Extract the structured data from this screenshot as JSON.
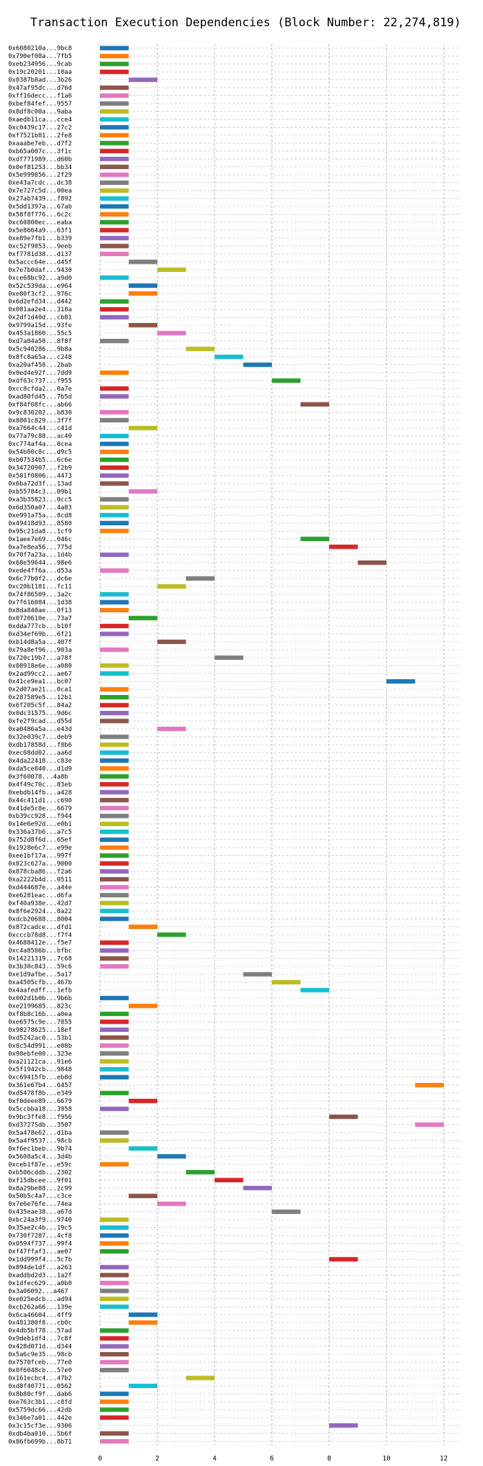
{
  "chart_data": {
    "type": "bar",
    "orientation": "horizontal",
    "title": "Transaction Execution Dependencies (Block Number: 22,274,819)",
    "xlabel": "",
    "ylabel": "",
    "xlim": [
      0,
      12.6
    ],
    "xticks": [
      0,
      2,
      4,
      6,
      8,
      10,
      12
    ],
    "grid": true,
    "palette": [
      "#1f77b4",
      "#ff7f0e",
      "#2ca02c",
      "#d62728",
      "#9467bd",
      "#8c564b",
      "#e377c2",
      "#7f7f7f",
      "#bcbd22",
      "#17becf"
    ],
    "transactions": [
      {
        "label": "0x6080210a...9bc8",
        "start": 0,
        "end": 1
      },
      {
        "label": "0x790ef08a...7fb5",
        "start": 0,
        "end": 1
      },
      {
        "label": "0xeb234956...9cab",
        "start": 0,
        "end": 1
      },
      {
        "label": "0x19c20201...10aa",
        "start": 0,
        "end": 1
      },
      {
        "label": "0x0387b8ad...3b26",
        "start": 1,
        "end": 2
      },
      {
        "label": "0x47af95dc...d76d",
        "start": 0,
        "end": 1
      },
      {
        "label": "0xff16decc...f1a6",
        "start": 0,
        "end": 1
      },
      {
        "label": "0xbef84fef...9557",
        "start": 0,
        "end": 1
      },
      {
        "label": "0x8df8c00a...9aba",
        "start": 0,
        "end": 1
      },
      {
        "label": "0xaedb11ca...cce4",
        "start": 0,
        "end": 1
      },
      {
        "label": "0xc0439c17...27c2",
        "start": 0,
        "end": 1
      },
      {
        "label": "0xf7521b81...2fe8",
        "start": 0,
        "end": 1
      },
      {
        "label": "0xaaabe7eb...d7f2",
        "start": 0,
        "end": 1
      },
      {
        "label": "0xb65a007c...3f1c",
        "start": 0,
        "end": 1
      },
      {
        "label": "0xdf771989...d60b",
        "start": 0,
        "end": 1
      },
      {
        "label": "0x0ef81253...bb34",
        "start": 0,
        "end": 1
      },
      {
        "label": "0x5e999856...2f29",
        "start": 0,
        "end": 1
      },
      {
        "label": "0xe43a7cdc...dc38",
        "start": 0,
        "end": 1
      },
      {
        "label": "0x7e727c5d...00ea",
        "start": 0,
        "end": 1
      },
      {
        "label": "0x27ab7439...f892",
        "start": 0,
        "end": 1
      },
      {
        "label": "0x5dd1397a...67ab",
        "start": 0,
        "end": 1
      },
      {
        "label": "0x58f8f776...6c2c",
        "start": 0,
        "end": 1
      },
      {
        "label": "0xc60800ec...eaba",
        "start": 0,
        "end": 1
      },
      {
        "label": "0x5e8664a9...63f1",
        "start": 0,
        "end": 1
      },
      {
        "label": "0xe89e7fb1...b339",
        "start": 0,
        "end": 1
      },
      {
        "label": "0xc52f9053...9eeb",
        "start": 0,
        "end": 1
      },
      {
        "label": "0xf7781d38...d137",
        "start": 0,
        "end": 1
      },
      {
        "label": "0x5accc64e...d45f",
        "start": 1,
        "end": 2
      },
      {
        "label": "0x7e7b0daf...9430",
        "start": 2,
        "end": 3
      },
      {
        "label": "0xce68bc92...a9d0",
        "start": 0,
        "end": 1
      },
      {
        "label": "0x52c539da...e964",
        "start": 1,
        "end": 2
      },
      {
        "label": "0xe80f3cf2...976c",
        "start": 1,
        "end": 2
      },
      {
        "label": "0x6d2efd34...d442",
        "start": 0,
        "end": 1
      },
      {
        "label": "0x081aa2e4...318a",
        "start": 0,
        "end": 1
      },
      {
        "label": "0x2df1d40d...cb81",
        "start": 0,
        "end": 1
      },
      {
        "label": "0x9799a15d...93fe",
        "start": 1,
        "end": 2
      },
      {
        "label": "0x453a1860...55c5",
        "start": 2,
        "end": 3
      },
      {
        "label": "0xd7a04a50...8f8f",
        "start": 0,
        "end": 1
      },
      {
        "label": "0x5c940286...9b8a",
        "start": 3,
        "end": 4
      },
      {
        "label": "0x8fc8a65a...c248",
        "start": 4,
        "end": 5
      },
      {
        "label": "0xa20af458...2bab",
        "start": 5,
        "end": 6
      },
      {
        "label": "0x0ed4e92f...7dd9",
        "start": 0,
        "end": 1
      },
      {
        "label": "0xdf63c737...f955",
        "start": 6,
        "end": 7
      },
      {
        "label": "0xcc8cfda2...0a7e",
        "start": 0,
        "end": 1
      },
      {
        "label": "0xad80fd45...7b5d",
        "start": 0,
        "end": 1
      },
      {
        "label": "0xf84f08fc...ab66",
        "start": 7,
        "end": 8
      },
      {
        "label": "0x9c830202...b830",
        "start": 0,
        "end": 1
      },
      {
        "label": "0x8801c829...3f7f",
        "start": 0,
        "end": 1
      },
      {
        "label": "0xa7664c44...c41d",
        "start": 1,
        "end": 2
      },
      {
        "label": "0x77a79c88...ac40",
        "start": 0,
        "end": 1
      },
      {
        "label": "0xc774af4a...0cea",
        "start": 0,
        "end": 1
      },
      {
        "label": "0x54b80c8c...d9c5",
        "start": 0,
        "end": 1
      },
      {
        "label": "0xb07534b5...6c6e",
        "start": 0,
        "end": 1
      },
      {
        "label": "0x34720907...f2b9",
        "start": 0,
        "end": 1
      },
      {
        "label": "0x581f0806...4473",
        "start": 0,
        "end": 1
      },
      {
        "label": "0x6ba72d3f...13ad",
        "start": 0,
        "end": 1
      },
      {
        "label": "0xb55784c3...09b1",
        "start": 1,
        "end": 2
      },
      {
        "label": "0xa3b35823...0cc5",
        "start": 0,
        "end": 1
      },
      {
        "label": "0x6d350a07...4a83",
        "start": 0,
        "end": 1
      },
      {
        "label": "0xe991a75a...8cd8",
        "start": 0,
        "end": 1
      },
      {
        "label": "0x49418d93...8580",
        "start": 0,
        "end": 1
      },
      {
        "label": "0x95c21da8...1cf9",
        "start": 0,
        "end": 1
      },
      {
        "label": "0x1aee7e69...046c",
        "start": 7,
        "end": 8
      },
      {
        "label": "0xa7e8ea56...775d",
        "start": 8,
        "end": 9
      },
      {
        "label": "0x70f7a23a...1d4b",
        "start": 0,
        "end": 1
      },
      {
        "label": "0x68e59644...98e6",
        "start": 9,
        "end": 10
      },
      {
        "label": "0xede4ff6a...d53a",
        "start": 0,
        "end": 1
      },
      {
        "label": "0x6c77b0f2...dc6e",
        "start": 3,
        "end": 4
      },
      {
        "label": "0xc20b1181...fc11",
        "start": 2,
        "end": 3
      },
      {
        "label": "0x74f86509...3a2c",
        "start": 0,
        "end": 1
      },
      {
        "label": "0x7f616084...1d38",
        "start": 0,
        "end": 1
      },
      {
        "label": "0x8da840ae...0f13",
        "start": 0,
        "end": 1
      },
      {
        "label": "0x0720610e...73a7",
        "start": 1,
        "end": 2
      },
      {
        "label": "0xdda777cb...b10f",
        "start": 0,
        "end": 1
      },
      {
        "label": "0xd34ef69b...6f21",
        "start": 0,
        "end": 1
      },
      {
        "label": "0xb14d8a5a...407f",
        "start": 2,
        "end": 3
      },
      {
        "label": "0x79a8ef96...903a",
        "start": 0,
        "end": 1
      },
      {
        "label": "0x720c19b7...a78f",
        "start": 4,
        "end": 5
      },
      {
        "label": "0x08918e6e...a080",
        "start": 0,
        "end": 1
      },
      {
        "label": "0x2ad99cc2...ae67",
        "start": 0,
        "end": 1
      },
      {
        "label": "0x41ce9ea1...bc07",
        "start": 10,
        "end": 11
      },
      {
        "label": "0x2d07ae21...0ca1",
        "start": 0,
        "end": 1
      },
      {
        "label": "0x287589e5...12b1",
        "start": 0,
        "end": 1
      },
      {
        "label": "0x6f205c5f...84a2",
        "start": 0,
        "end": 1
      },
      {
        "label": "0x0dc31575...9d6c",
        "start": 0,
        "end": 1
      },
      {
        "label": "0xfe2f9cad...d55d",
        "start": 0,
        "end": 1
      },
      {
        "label": "0xa0486a5a...e43d",
        "start": 2,
        "end": 3
      },
      {
        "label": "0x32e039c7...deb9",
        "start": 0,
        "end": 1
      },
      {
        "label": "0xdb17858d...f8b6",
        "start": 0,
        "end": 1
      },
      {
        "label": "0xec08dd02...aa6d",
        "start": 0,
        "end": 1
      },
      {
        "label": "0x4da22418...c83e",
        "start": 0,
        "end": 1
      },
      {
        "label": "0xda5ce840...d1d9",
        "start": 0,
        "end": 1
      },
      {
        "label": "0x3f60078...4a8b",
        "start": 0,
        "end": 1
      },
      {
        "label": "0x4f49c70c...83eb",
        "start": 0,
        "end": 1
      },
      {
        "label": "0xebdb14fb...a428",
        "start": 0,
        "end": 1
      },
      {
        "label": "0x44c411d1...c690",
        "start": 0,
        "end": 1
      },
      {
        "label": "0x41de5c8e...6679",
        "start": 0,
        "end": 1
      },
      {
        "label": "0xb39cc928...f944",
        "start": 0,
        "end": 1
      },
      {
        "label": "0x14e6e92d...e0b1",
        "start": 0,
        "end": 1
      },
      {
        "label": "0x336a37b6...a7c5",
        "start": 0,
        "end": 1
      },
      {
        "label": "0x752d8f6d...65ef",
        "start": 0,
        "end": 1
      },
      {
        "label": "0x1928e6c7...e99e",
        "start": 0,
        "end": 1
      },
      {
        "label": "0xee1bf17a...997f",
        "start": 0,
        "end": 1
      },
      {
        "label": "0x823c627a...9000",
        "start": 0,
        "end": 1
      },
      {
        "label": "0x878cba86...f2a6",
        "start": 0,
        "end": 1
      },
      {
        "label": "0xa2222b4d...0511",
        "start": 0,
        "end": 1
      },
      {
        "label": "0xd444687e...a44e",
        "start": 0,
        "end": 1
      },
      {
        "label": "0xe6281eac...d6fa",
        "start": 0,
        "end": 1
      },
      {
        "label": "0xf40a938e...42d7",
        "start": 0,
        "end": 1
      },
      {
        "label": "0x8f6e2924...8a22",
        "start": 0,
        "end": 1
      },
      {
        "label": "0xdcb20688...8004",
        "start": 0,
        "end": 1
      },
      {
        "label": "0x872cadce...dfd1",
        "start": 1,
        "end": 2
      },
      {
        "label": "0xcccb78d8...f7f4",
        "start": 2,
        "end": 3
      },
      {
        "label": "0x4688412e...f5e7",
        "start": 0,
        "end": 1
      },
      {
        "label": "0xc4a8586b...bfbc",
        "start": 0,
        "end": 1
      },
      {
        "label": "0x14221319...7c68",
        "start": 0,
        "end": 1
      },
      {
        "label": "0x3b30c843...59c6",
        "start": 0,
        "end": 1
      },
      {
        "label": "0xe1d9afbe...5a17",
        "start": 5,
        "end": 6
      },
      {
        "label": "0xa4505cfb...467b",
        "start": 6,
        "end": 7
      },
      {
        "label": "0x4aafedff...1efb",
        "start": 7,
        "end": 8
      },
      {
        "label": "0x002d1b0b...9b6b",
        "start": 0,
        "end": 1
      },
      {
        "label": "0xe2199685...823c",
        "start": 1,
        "end": 2
      },
      {
        "label": "0xf8b8c16b...a0ea",
        "start": 0,
        "end": 1
      },
      {
        "label": "0xe6575c9e...7855",
        "start": 0,
        "end": 1
      },
      {
        "label": "0x98278625...18ef",
        "start": 0,
        "end": 1
      },
      {
        "label": "0xd5242ac0...53b1",
        "start": 0,
        "end": 1
      },
      {
        "label": "0x8c54d991...e08b",
        "start": 0,
        "end": 1
      },
      {
        "label": "0x98ebfe00...323e",
        "start": 0,
        "end": 1
      },
      {
        "label": "0xa21121ca...91e6",
        "start": 0,
        "end": 1
      },
      {
        "label": "0x5f1942cb...9848",
        "start": 0,
        "end": 1
      },
      {
        "label": "0xc69415fb...eb8d",
        "start": 0,
        "end": 1
      },
      {
        "label": "0x361e67b4...6457",
        "start": 11,
        "end": 12
      },
      {
        "label": "0xd5478f8b...e349",
        "start": 0,
        "end": 1
      },
      {
        "label": "0xf0deee89...6679",
        "start": 1,
        "end": 2
      },
      {
        "label": "0x5ccbba18...3958",
        "start": 0,
        "end": 1
      },
      {
        "label": "0x9bc3ffe8...f956",
        "start": 8,
        "end": 9
      },
      {
        "label": "0xd3727Sdb...3507",
        "start": 11,
        "end": 12
      },
      {
        "label": "0x5a478e62...d1ba",
        "start": 0,
        "end": 1
      },
      {
        "label": "0x5a4f9537...98cb",
        "start": 0,
        "end": 1
      },
      {
        "label": "0xf6ec1beb...9b74",
        "start": 1,
        "end": 2
      },
      {
        "label": "0x5608a5c4...3d4b",
        "start": 2,
        "end": 3
      },
      {
        "label": "0xceb1f87e...e59c",
        "start": 0,
        "end": 1
      },
      {
        "label": "0xb506cddb...2302",
        "start": 3,
        "end": 4
      },
      {
        "label": "0xf15dbcee...9f01",
        "start": 4,
        "end": 5
      },
      {
        "label": "0x8a29be88...2c99",
        "start": 5,
        "end": 6
      },
      {
        "label": "0x50b5c4a7...c3ce",
        "start": 1,
        "end": 2
      },
      {
        "label": "0x7e6e76fe...74ea",
        "start": 2,
        "end": 3
      },
      {
        "label": "0x435eae38...a67d",
        "start": 6,
        "end": 7
      },
      {
        "label": "0xbc24a3f9...9740",
        "start": 0,
        "end": 1
      },
      {
        "label": "0x35ae2c4b...19c5",
        "start": 0,
        "end": 1
      },
      {
        "label": "0x730f7287...4cf8",
        "start": 0,
        "end": 1
      },
      {
        "label": "0x0594f737...99f4",
        "start": 0,
        "end": 1
      },
      {
        "label": "0xf47ffaf3...ae07",
        "start": 0,
        "end": 1
      },
      {
        "label": "0x1dd999f4...5c7b",
        "start": 8,
        "end": 9
      },
      {
        "label": "0x894de1df...a263",
        "start": 0,
        "end": 1
      },
      {
        "label": "0xaddbd2d3...1a2f",
        "start": 0,
        "end": 1
      },
      {
        "label": "0x1dfec629...a0b0",
        "start": 0,
        "end": 1
      },
      {
        "label": "0x3a06092...a467",
        "start": 0,
        "end": 1
      },
      {
        "label": "0xe025edcb...ad94",
        "start": 0,
        "end": 1
      },
      {
        "label": "0xcb262a66...139e",
        "start": 0,
        "end": 1
      },
      {
        "label": "0x6ca46604...4ff9",
        "start": 1,
        "end": 2
      },
      {
        "label": "0x481380f8...cb0c",
        "start": 1,
        "end": 2
      },
      {
        "label": "0x4db5bf78...57ad",
        "start": 0,
        "end": 1
      },
      {
        "label": "0x9deb1df4...7c8f",
        "start": 0,
        "end": 1
      },
      {
        "label": "0x428d071d...d344",
        "start": 0,
        "end": 1
      },
      {
        "label": "0x5a6c9e35...98cb",
        "start": 0,
        "end": 1
      },
      {
        "label": "0x7570fceb...77e0",
        "start": 0,
        "end": 1
      },
      {
        "label": "0x0f6048cb...57e0",
        "start": 0,
        "end": 1
      },
      {
        "label": "0x161ecbc4...47b2",
        "start": 3,
        "end": 4
      },
      {
        "label": "0xd8f40771...0562",
        "start": 1,
        "end": 2
      },
      {
        "label": "0x8b80cf9f...dab6",
        "start": 0,
        "end": 1
      },
      {
        "label": "0xe763c3b1...c8fd",
        "start": 0,
        "end": 1
      },
      {
        "label": "0x5759dc66...42db",
        "start": 0,
        "end": 1
      },
      {
        "label": "0x346e7a01...442e",
        "start": 0,
        "end": 1
      },
      {
        "label": "0x3c15cf3e...9306",
        "start": 8,
        "end": 9
      },
      {
        "label": "0xdb4ba010...5b6f",
        "start": 0,
        "end": 1
      },
      {
        "label": "0x86fb699b...8b71",
        "start": 0,
        "end": 1
      }
    ]
  }
}
